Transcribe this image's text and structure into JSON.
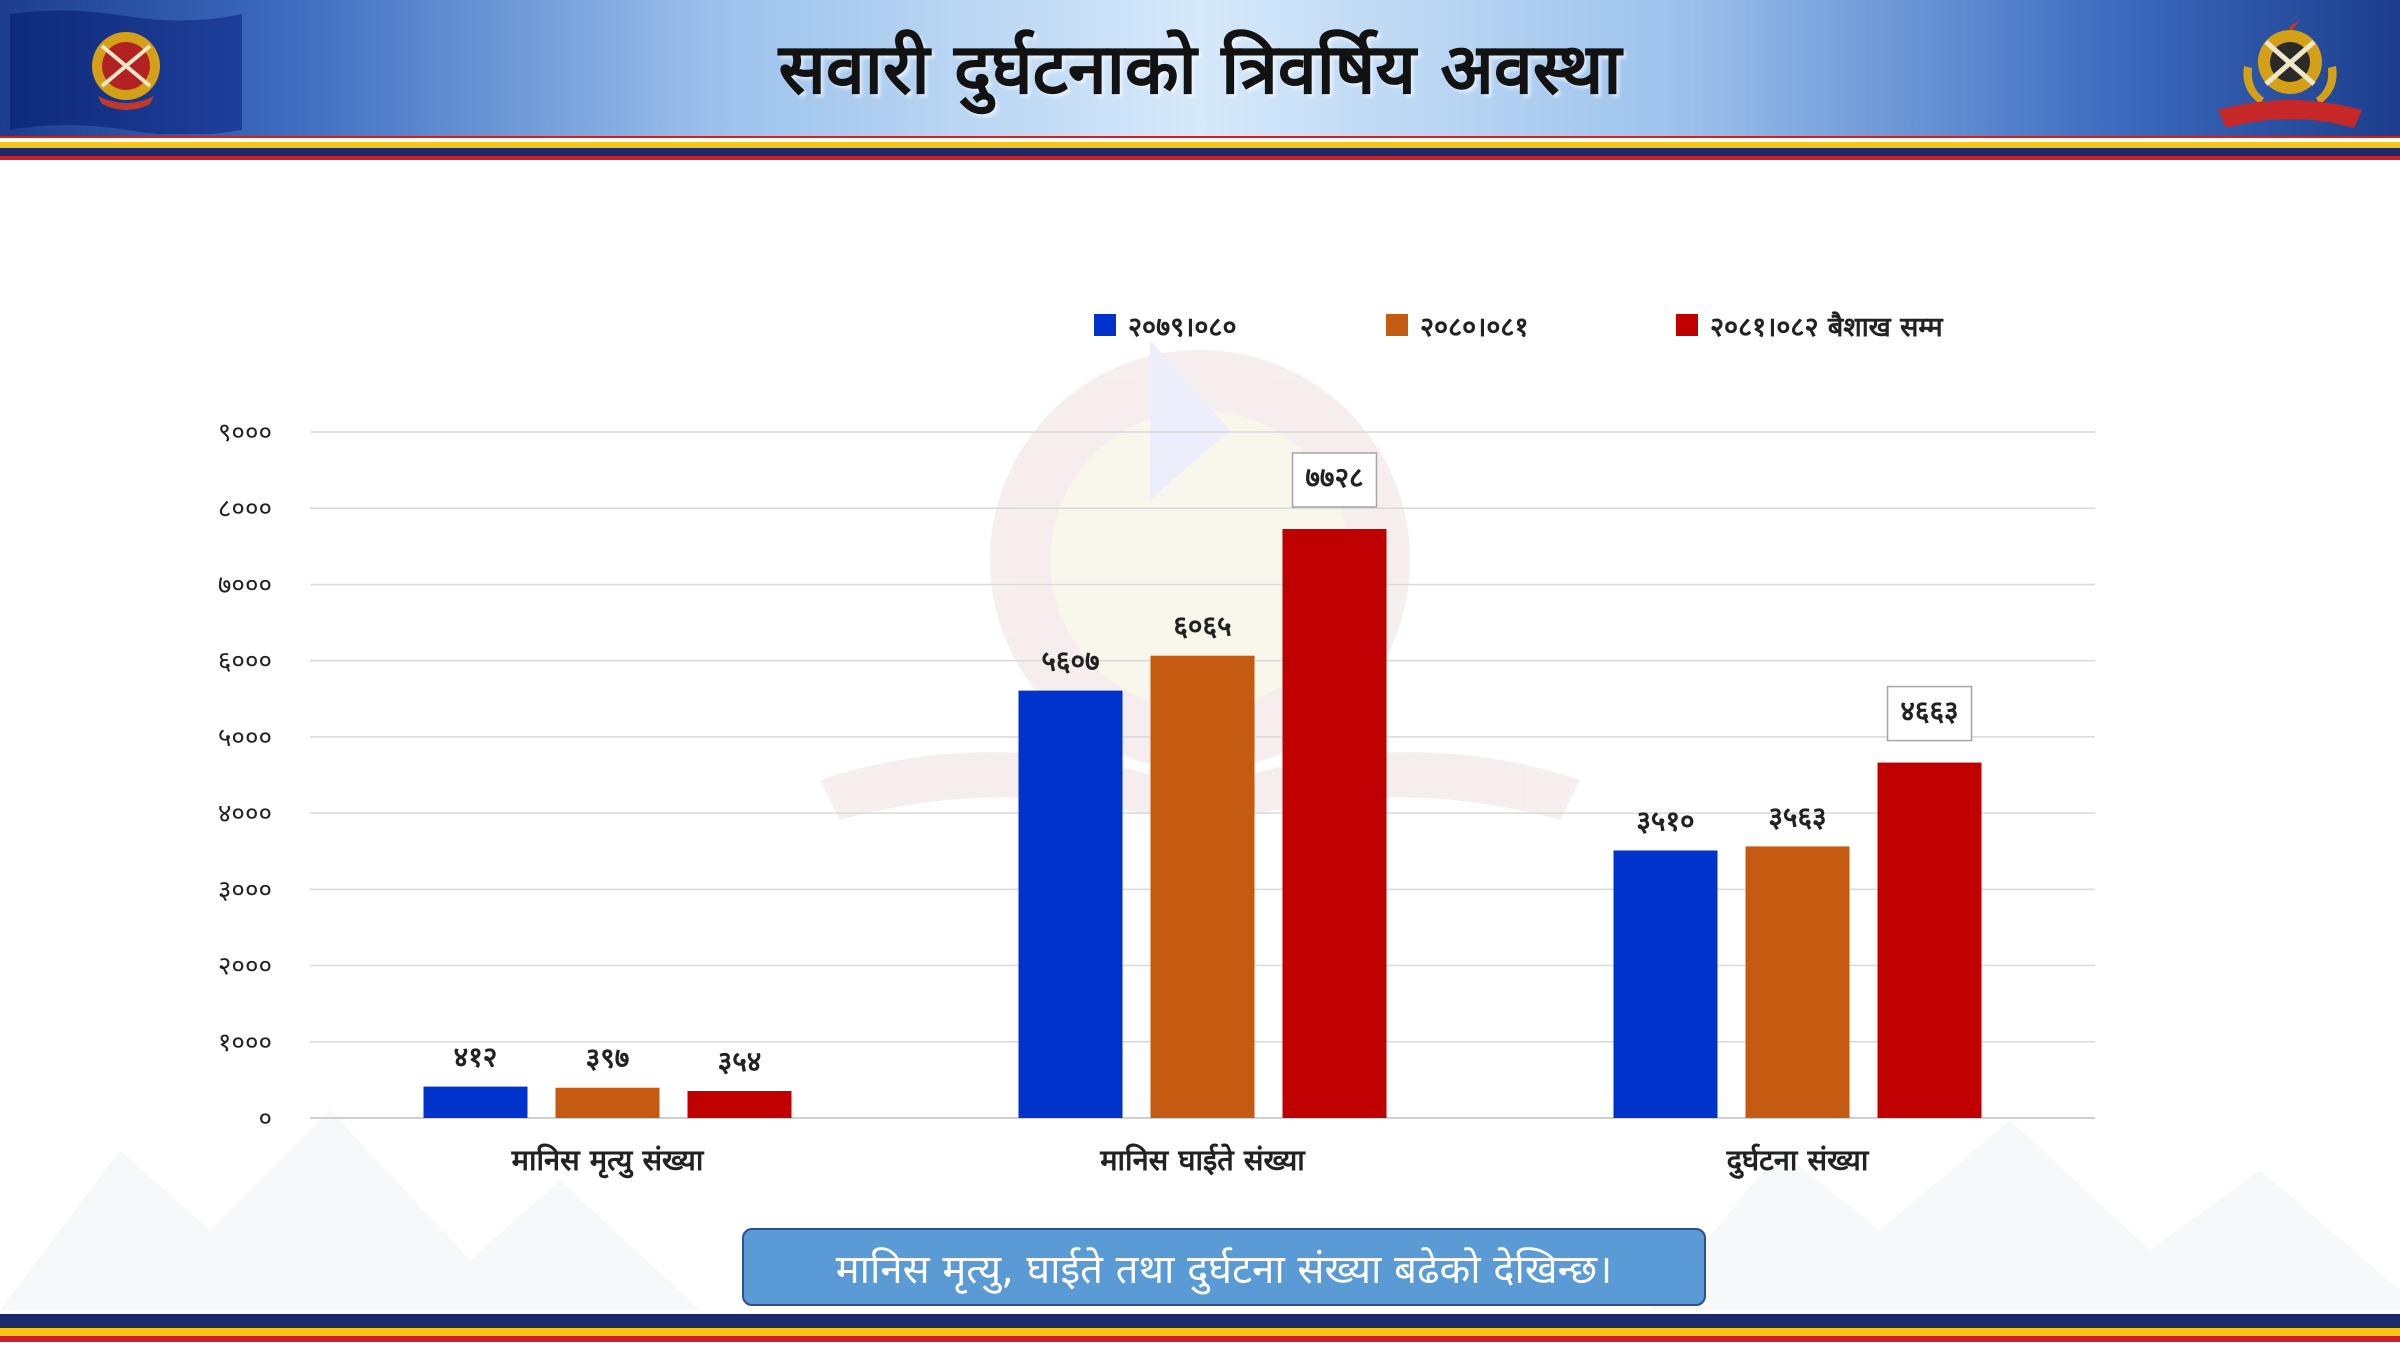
{
  "header": {
    "title": "सवारी दुर्घटनाको त्रिवर्षिय अवस्था",
    "logo_left_icon": "police-emblem-flag-icon",
    "logo_right_icon": "police-emblem-icon"
  },
  "colors": {
    "series_1": "#0033cc",
    "series_2": "#c55a11",
    "series_3": "#c00000",
    "stripe_red": "#d01f26",
    "stripe_yellow": "#f5c518",
    "stripe_navy": "#1b2a6b",
    "callout_bg": "#5b9bd5"
  },
  "chart_data": {
    "type": "bar",
    "title": "",
    "xlabel": "",
    "ylabel": "",
    "categories": [
      "मानिस मृत्यु संख्या",
      "मानिस घाईते संख्या",
      "दुर्घटना संख्या"
    ],
    "series": [
      {
        "name": "२०७९।०८०",
        "values": [
          412,
          5607,
          3510
        ],
        "labels": [
          "४१२",
          "५६०७",
          "३५१०"
        ]
      },
      {
        "name": "२०८०।०८१",
        "values": [
          397,
          6065,
          3563
        ],
        "labels": [
          "३९७",
          "६०६५",
          "३५६३"
        ]
      },
      {
        "name": "२०८१।०८२ बैशाख सम्म",
        "values": [
          354,
          7728,
          4663
        ],
        "labels": [
          "३५४",
          "७७२८",
          "४६६३"
        ]
      }
    ],
    "ylim": [
      0,
      9000
    ],
    "y_ticks": [
      0,
      1000,
      2000,
      3000,
      4000,
      5000,
      6000,
      7000,
      8000,
      9000
    ],
    "y_tick_labels": [
      "०",
      "१०००",
      "२०००",
      "३०००",
      "४०००",
      "५०००",
      "६०००",
      "७०००",
      "८०००",
      "९०००"
    ],
    "boxed_labels": [
      [
        false,
        false,
        false
      ],
      [
        false,
        false,
        true
      ],
      [
        false,
        false,
        true
      ]
    ],
    "grid": true,
    "legend_position": "top"
  },
  "callout": {
    "text": "मानिस मृत्यु, घाईते तथा दुर्घटना संख्या बढेको देखिन्छ।"
  }
}
